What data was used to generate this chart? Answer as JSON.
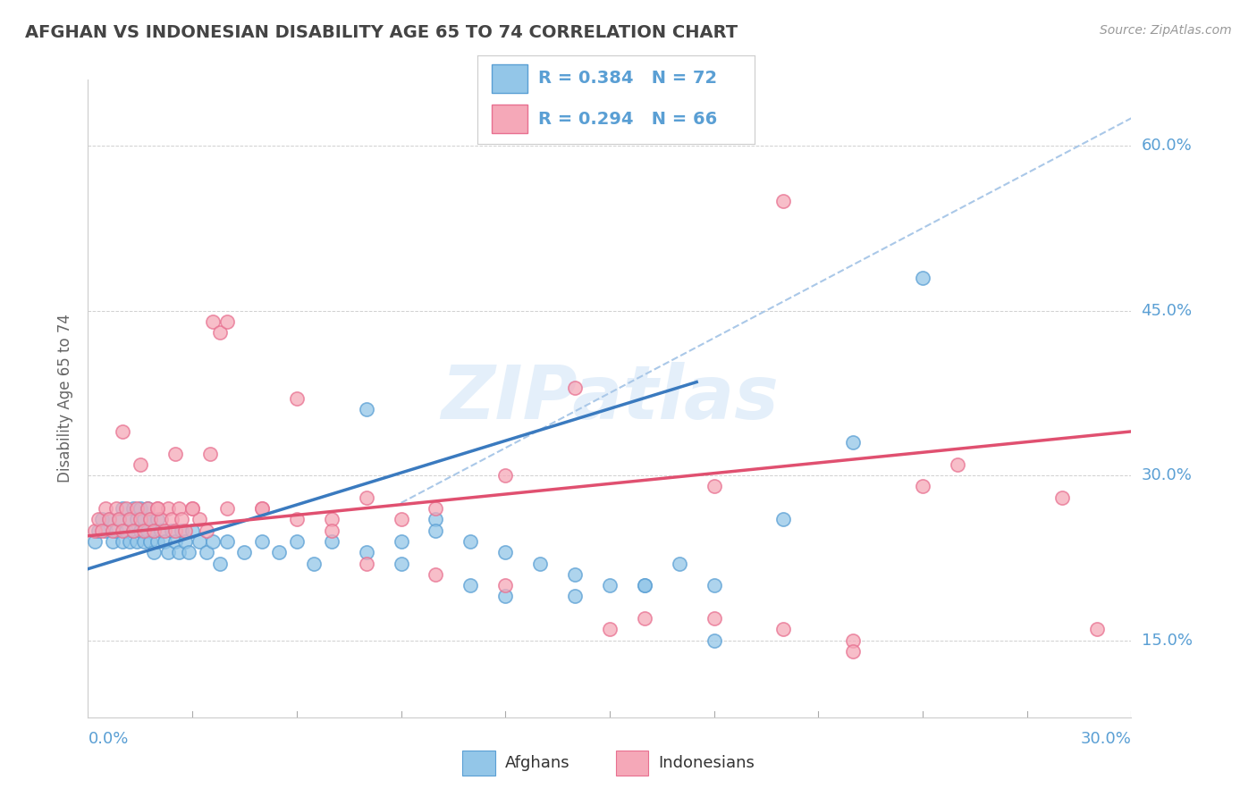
{
  "title": "AFGHAN VS INDONESIAN DISABILITY AGE 65 TO 74 CORRELATION CHART",
  "source_text": "Source: ZipAtlas.com",
  "ylabel": "Disability Age 65 to 74",
  "xlim": [
    0.0,
    0.3
  ],
  "ylim": [
    0.08,
    0.66
  ],
  "yticks": [
    0.15,
    0.3,
    0.45,
    0.6
  ],
  "ytick_labels": [
    "15.0%",
    "30.0%",
    "45.0%",
    "60.0%"
  ],
  "xtick_labels": [
    "0.0%",
    "30.0%"
  ],
  "afghan_color": "#93c6e8",
  "indonesian_color": "#f5a8b8",
  "afghan_edge_color": "#5a9fd4",
  "indonesian_edge_color": "#e87090",
  "afghan_R": 0.384,
  "afghan_N": 72,
  "indonesian_R": 0.294,
  "indonesian_N": 66,
  "background_color": "#ffffff",
  "grid_color": "#d0d0d0",
  "title_color": "#444444",
  "tick_label_color": "#5a9fd4",
  "legend_label_afghan": "Afghans",
  "legend_label_indonesian": "Indonesians",
  "watermark_text": "ZIPatlas",
  "afghan_trend_color": "#3a7abf",
  "indonesian_trend_color": "#e05070",
  "dashed_line_color": "#aac8e8",
  "afghan_trend_x": [
    0.0,
    0.175
  ],
  "afghan_trend_y": [
    0.215,
    0.385
  ],
  "indonesian_trend_x": [
    0.0,
    0.3
  ],
  "indonesian_trend_y": [
    0.245,
    0.34
  ],
  "dashed_line_x": [
    0.09,
    0.3
  ],
  "dashed_line_y": [
    0.275,
    0.625
  ],
  "afghan_points_x": [
    0.002,
    0.003,
    0.004,
    0.005,
    0.006,
    0.007,
    0.008,
    0.009,
    0.01,
    0.01,
    0.011,
    0.012,
    0.012,
    0.013,
    0.013,
    0.014,
    0.014,
    0.015,
    0.015,
    0.016,
    0.016,
    0.017,
    0.017,
    0.018,
    0.018,
    0.019,
    0.019,
    0.02,
    0.02,
    0.021,
    0.022,
    0.023,
    0.024,
    0.025,
    0.026,
    0.027,
    0.028,
    0.029,
    0.03,
    0.032,
    0.034,
    0.036,
    0.038,
    0.04,
    0.045,
    0.05,
    0.055,
    0.06,
    0.065,
    0.07,
    0.08,
    0.09,
    0.1,
    0.11,
    0.12,
    0.13,
    0.14,
    0.15,
    0.16,
    0.17,
    0.18,
    0.2,
    0.22,
    0.24,
    0.08,
    0.09,
    0.1,
    0.11,
    0.12,
    0.14,
    0.16,
    0.18
  ],
  "afghan_points_y": [
    0.24,
    0.25,
    0.26,
    0.25,
    0.26,
    0.24,
    0.25,
    0.26,
    0.24,
    0.27,
    0.25,
    0.24,
    0.26,
    0.25,
    0.27,
    0.24,
    0.26,
    0.25,
    0.27,
    0.24,
    0.26,
    0.25,
    0.27,
    0.24,
    0.26,
    0.25,
    0.23,
    0.24,
    0.26,
    0.25,
    0.24,
    0.23,
    0.25,
    0.24,
    0.23,
    0.25,
    0.24,
    0.23,
    0.25,
    0.24,
    0.23,
    0.24,
    0.22,
    0.24,
    0.23,
    0.24,
    0.23,
    0.24,
    0.22,
    0.24,
    0.23,
    0.24,
    0.26,
    0.24,
    0.23,
    0.22,
    0.21,
    0.2,
    0.2,
    0.22,
    0.2,
    0.26,
    0.33,
    0.48,
    0.36,
    0.22,
    0.25,
    0.2,
    0.19,
    0.19,
    0.2,
    0.15
  ],
  "indonesian_points_x": [
    0.002,
    0.003,
    0.004,
    0.005,
    0.006,
    0.007,
    0.008,
    0.009,
    0.01,
    0.011,
    0.012,
    0.013,
    0.014,
    0.015,
    0.016,
    0.017,
    0.018,
    0.019,
    0.02,
    0.021,
    0.022,
    0.023,
    0.024,
    0.025,
    0.026,
    0.027,
    0.028,
    0.03,
    0.032,
    0.034,
    0.036,
    0.038,
    0.04,
    0.05,
    0.06,
    0.07,
    0.08,
    0.09,
    0.1,
    0.12,
    0.14,
    0.16,
    0.18,
    0.2,
    0.22,
    0.24,
    0.25,
    0.28,
    0.29,
    0.01,
    0.015,
    0.02,
    0.025,
    0.03,
    0.035,
    0.04,
    0.05,
    0.06,
    0.07,
    0.08,
    0.1,
    0.12,
    0.15,
    0.18,
    0.2,
    0.22
  ],
  "indonesian_points_y": [
    0.25,
    0.26,
    0.25,
    0.27,
    0.26,
    0.25,
    0.27,
    0.26,
    0.25,
    0.27,
    0.26,
    0.25,
    0.27,
    0.26,
    0.25,
    0.27,
    0.26,
    0.25,
    0.27,
    0.26,
    0.25,
    0.27,
    0.26,
    0.25,
    0.27,
    0.26,
    0.25,
    0.27,
    0.26,
    0.25,
    0.44,
    0.43,
    0.44,
    0.27,
    0.37,
    0.26,
    0.28,
    0.26,
    0.27,
    0.3,
    0.38,
    0.17,
    0.29,
    0.55,
    0.15,
    0.29,
    0.31,
    0.28,
    0.16,
    0.34,
    0.31,
    0.27,
    0.32,
    0.27,
    0.32,
    0.27,
    0.27,
    0.26,
    0.25,
    0.22,
    0.21,
    0.2,
    0.16,
    0.17,
    0.16,
    0.14
  ]
}
